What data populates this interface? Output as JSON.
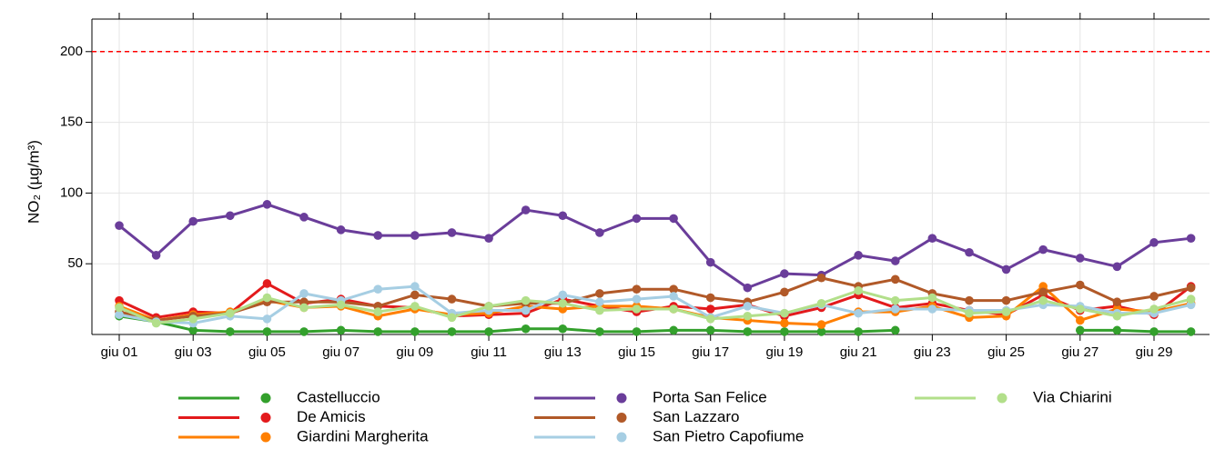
{
  "chart_data": {
    "type": "line",
    "y_label": "NO₂ (µg/m³)",
    "categories": [
      "giu 01",
      null,
      "giu 03",
      null,
      "giu 05",
      null,
      "giu 07",
      null,
      "giu 09",
      null,
      "giu 11",
      null,
      "giu 13",
      null,
      "giu 15",
      null,
      "giu 17",
      null,
      "giu 19",
      null,
      "giu 21",
      null,
      "giu 23",
      null,
      "giu 25",
      null,
      "giu 27",
      null,
      "giu 29",
      null
    ],
    "ylim": [
      0,
      223
    ],
    "yticks": [
      50,
      100,
      150,
      200
    ],
    "grid": true,
    "reference_line": {
      "value": 200,
      "color": "#ff0000",
      "dashed": true
    },
    "series": [
      {
        "name": "Castelluccio",
        "color": "#33a02c",
        "values": [
          13,
          9,
          3,
          2,
          2,
          2,
          3,
          2,
          2,
          2,
          2,
          4,
          4,
          2,
          2,
          3,
          3,
          2,
          2,
          2,
          2,
          3,
          null,
          null,
          null,
          null,
          3,
          3,
          2,
          2
        ]
      },
      {
        "name": "De Amicis",
        "color": "#e31a1c",
        "values": [
          24,
          12,
          16,
          15,
          36,
          22,
          25,
          20,
          19,
          13,
          14,
          15,
          25,
          20,
          16,
          20,
          18,
          21,
          13,
          19,
          28,
          19,
          22,
          17,
          14,
          28,
          17,
          20,
          14,
          34
        ]
      },
      {
        "name": "Giardini Margherita",
        "color": "#ff7f00",
        "values": [
          20,
          10,
          14,
          16,
          24,
          19,
          20,
          13,
          18,
          14,
          15,
          20,
          18,
          20,
          20,
          18,
          12,
          10,
          8,
          7,
          16,
          16,
          20,
          12,
          13,
          34,
          10,
          18,
          16,
          22
        ]
      },
      {
        "name": "Porta San Felice",
        "color": "#6a3d9a",
        "values": [
          77,
          56,
          80,
          84,
          92,
          83,
          74,
          70,
          70,
          72,
          68,
          88,
          84,
          72,
          82,
          82,
          51,
          33,
          43,
          42,
          56,
          52,
          68,
          58,
          46,
          60,
          54,
          48,
          65,
          68
        ]
      },
      {
        "name": "San Lazzaro",
        "color": "#b15928",
        "values": [
          16,
          10,
          13,
          15,
          23,
          23,
          23,
          20,
          28,
          25,
          20,
          22,
          22,
          29,
          32,
          32,
          26,
          23,
          30,
          40,
          34,
          39,
          29,
          24,
          24,
          30,
          35,
          23,
          27,
          33
        ]
      },
      {
        "name": "San Pietro Capofiume",
        "color": "#a6cee3",
        "values": [
          14,
          9,
          8,
          13,
          11,
          29,
          24,
          32,
          34,
          15,
          17,
          17,
          28,
          23,
          25,
          27,
          12,
          20,
          15,
          21,
          15,
          18,
          18,
          17,
          17,
          21,
          20,
          15,
          15,
          21
        ]
      },
      {
        "name": "Via Chiarini",
        "color": "#b2df8a",
        "values": [
          19,
          8,
          11,
          15,
          26,
          19,
          21,
          16,
          20,
          12,
          20,
          24,
          22,
          17,
          18,
          18,
          11,
          13,
          15,
          22,
          31,
          24,
          26,
          15,
          16,
          24,
          18,
          13,
          18,
          25
        ]
      }
    ]
  }
}
